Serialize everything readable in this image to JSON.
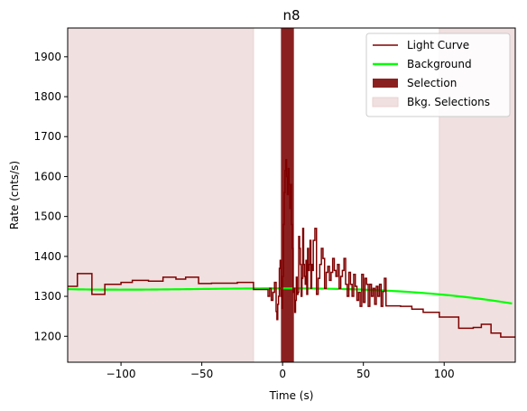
{
  "chart_data": {
    "type": "line",
    "title": "n8",
    "xlabel": "Time (s)",
    "ylabel": "Rate (cnts/s)",
    "xlim": [
      -133,
      144
    ],
    "ylim": [
      1135,
      1972
    ],
    "xticks": [
      -100,
      -50,
      0,
      50,
      100
    ],
    "yticks": [
      1200,
      1300,
      1400,
      1500,
      1600,
      1700,
      1800,
      1900
    ],
    "legend_position": "top-right",
    "grid": false,
    "legend": [
      {
        "label": "Light Curve",
        "kind": "line",
        "color": "#800000"
      },
      {
        "label": "Background",
        "kind": "line",
        "color": "#00ff00"
      },
      {
        "label": "Selection",
        "kind": "patch",
        "color": "#8b2020"
      },
      {
        "label": "Bkg. Selections",
        "kind": "patch",
        "color": "#f0e0e0"
      }
    ],
    "bkg_selections": [
      [
        -133,
        -18
      ],
      [
        97,
        144
      ]
    ],
    "selection": [
      -1,
      7
    ],
    "background_poly": [
      -6.4e-06,
      -0.00097,
      -0.00029,
      1320
    ],
    "background_range": [
      -133,
      142
    ],
    "light_curve": {
      "steps": [
        [
          -133,
          1325
        ],
        [
          -127,
          1357
        ],
        [
          -118,
          1305
        ],
        [
          -110,
          1330
        ],
        [
          -100,
          1335
        ],
        [
          -93,
          1340
        ],
        [
          -83,
          1338
        ],
        [
          -74,
          1348
        ],
        [
          -66,
          1343
        ],
        [
          -60,
          1348
        ],
        [
          -52,
          1332
        ],
        [
          -44,
          1333
        ],
        [
          -28,
          1335
        ],
        [
          -18,
          1317
        ],
        [
          -9,
          1335
        ],
        [
          -1,
          1315
        ],
        [
          3,
          1320
        ],
        [
          5,
          1322
        ],
        [
          7,
          1320
        ],
        [
          8,
          1300
        ],
        [
          10,
          1305
        ],
        [
          15,
          1280
        ],
        [
          17,
          1278
        ],
        [
          19,
          1275
        ],
        [
          21,
          1272
        ],
        [
          28,
          1270
        ],
        [
          35,
          1267
        ],
        [
          40,
          1265
        ],
        [
          48,
          1262
        ],
        [
          55,
          1260
        ],
        [
          64,
          1276
        ],
        [
          73,
          1275
        ],
        [
          80,
          1268
        ],
        [
          87,
          1260
        ],
        [
          97,
          1248
        ],
        [
          104,
          1248
        ],
        [
          109,
          1220
        ],
        [
          118,
          1222
        ],
        [
          123,
          1230
        ],
        [
          129,
          1208
        ],
        [
          135,
          1198
        ],
        [
          144,
          1198
        ]
      ],
      "peak": [
        [
          -9,
          1300
        ],
        [
          -8,
          1320
        ],
        [
          -7,
          1290
        ],
        [
          -6,
          1310
        ],
        [
          -5,
          1335
        ],
        [
          -4,
          1262
        ],
        [
          -3.5,
          1242
        ],
        [
          -3,
          1280
        ],
        [
          -2.5,
          1300
        ],
        [
          -2,
          1370
        ],
        [
          -1.5,
          1390
        ],
        [
          -1,
          1300
        ],
        [
          -0.5,
          1270
        ],
        [
          0,
          1350
        ],
        [
          0.5,
          1480
        ],
        [
          1,
          1560
        ],
        [
          1.5,
          1615
        ],
        [
          2,
          1642
        ],
        [
          2.5,
          1600
        ],
        [
          3,
          1555
        ],
        [
          3.5,
          1620
        ],
        [
          4,
          1580
        ],
        [
          4.5,
          1520
        ],
        [
          5,
          1580
        ],
        [
          5.5,
          1480
        ],
        [
          6,
          1420
        ],
        [
          6.5,
          1310
        ],
        [
          7,
          1320
        ],
        [
          7.5,
          1260
        ],
        [
          8,
          1290
        ],
        [
          8.5,
          1348
        ],
        [
          9,
          1305
        ],
        [
          9.5,
          1310
        ],
        [
          10,
          1450
        ],
        [
          10.5,
          1420
        ],
        [
          11,
          1380
        ],
        [
          11.5,
          1300
        ],
        [
          12,
          1345
        ],
        [
          12.5,
          1470
        ],
        [
          13,
          1380
        ],
        [
          13.5,
          1350
        ],
        [
          14,
          1330
        ],
        [
          14.5,
          1390
        ],
        [
          15,
          1305
        ],
        [
          15.5,
          1420
        ],
        [
          16,
          1365
        ],
        [
          16.5,
          1380
        ],
        [
          17,
          1440
        ],
        [
          17.5,
          1320
        ],
        [
          18,
          1380
        ],
        [
          18.5,
          1365
        ],
        [
          19,
          1440
        ],
        [
          20,
          1470
        ],
        [
          21,
          1305
        ],
        [
          22,
          1345
        ],
        [
          23,
          1380
        ],
        [
          24,
          1420
        ],
        [
          25,
          1395
        ],
        [
          26,
          1320
        ],
        [
          27,
          1360
        ],
        [
          28,
          1375
        ],
        [
          29,
          1340
        ],
        [
          30,
          1360
        ],
        [
          31,
          1395
        ],
        [
          32,
          1365
        ],
        [
          33,
          1350
        ],
        [
          34,
          1380
        ],
        [
          35,
          1320
        ],
        [
          36,
          1350
        ],
        [
          37,
          1365
        ],
        [
          38,
          1395
        ],
        [
          39,
          1330
        ],
        [
          40,
          1300
        ],
        [
          41,
          1360
        ],
        [
          42,
          1330
        ],
        [
          43,
          1300
        ],
        [
          44,
          1355
        ],
        [
          45,
          1325
        ],
        [
          46,
          1290
        ],
        [
          47,
          1310
        ],
        [
          48,
          1275
        ],
        [
          49,
          1355
        ],
        [
          50,
          1285
        ],
        [
          51,
          1345
        ],
        [
          52,
          1330
        ],
        [
          53,
          1275
        ],
        [
          54,
          1330
        ],
        [
          55,
          1300
        ],
        [
          56,
          1320
        ],
        [
          57,
          1280
        ],
        [
          58,
          1325
        ],
        [
          59,
          1300
        ],
        [
          60,
          1330
        ],
        [
          61,
          1275
        ],
        [
          62,
          1312
        ],
        [
          63,
          1345
        ],
        [
          64,
          1276
        ]
      ]
    }
  }
}
